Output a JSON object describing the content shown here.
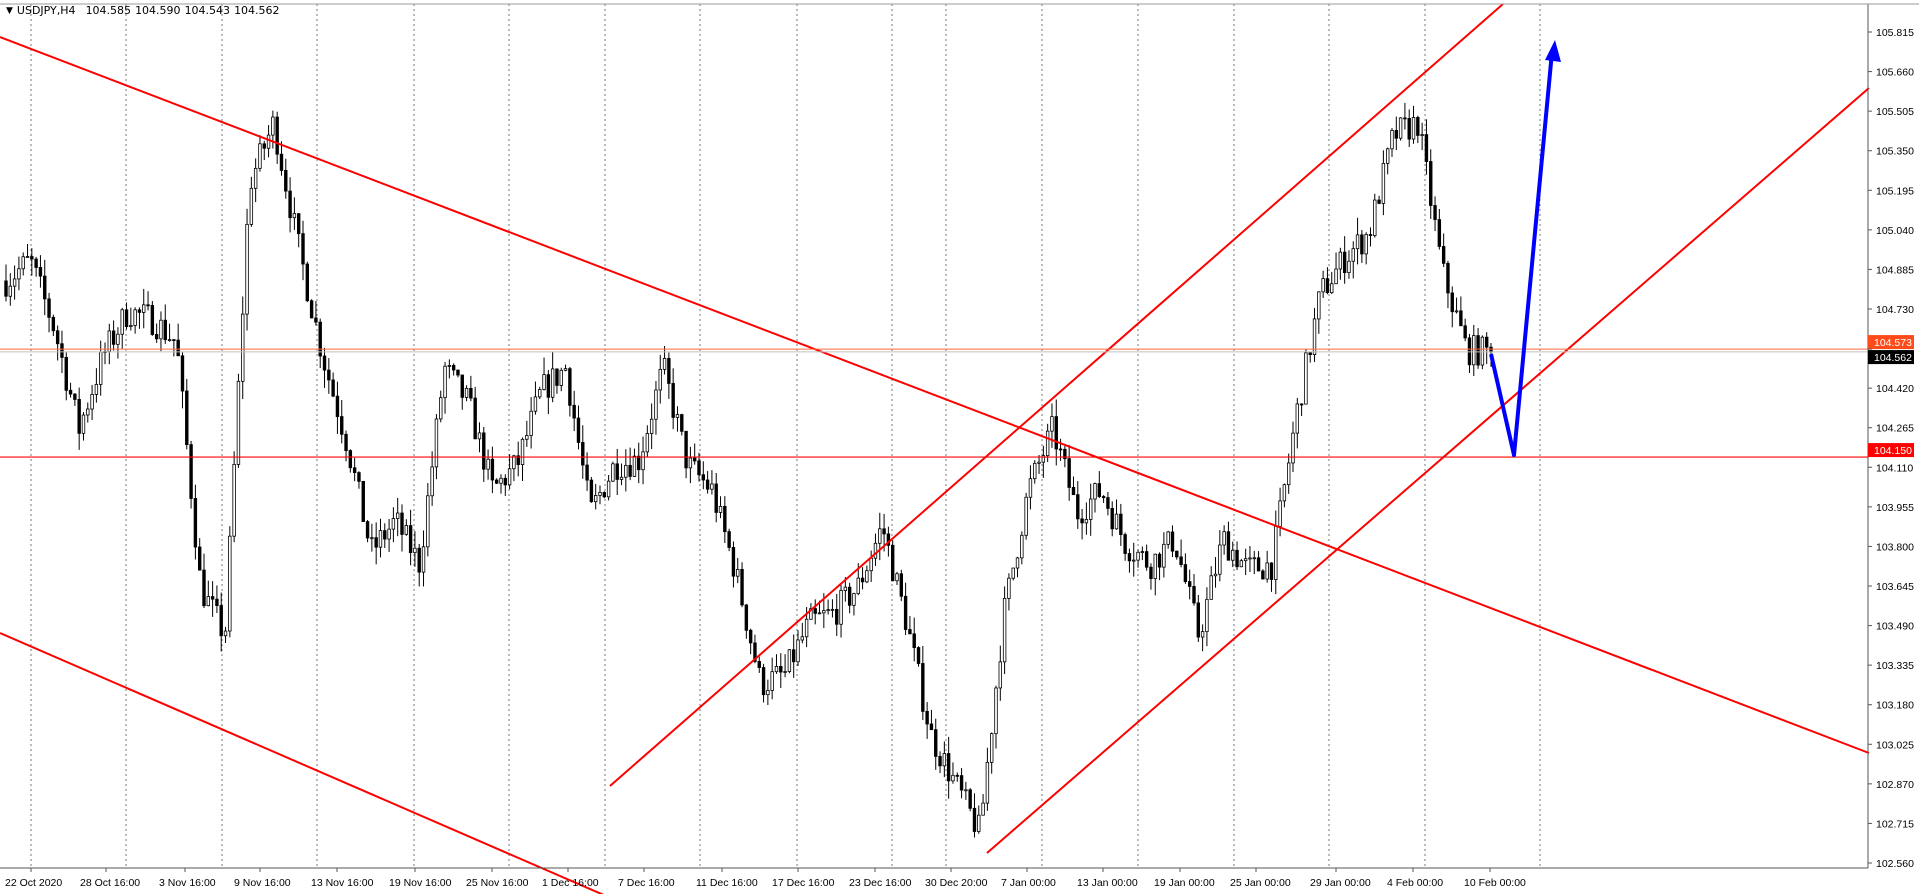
{
  "header": {
    "symbol": "USDJPY,H4",
    "open": "104.585",
    "high": "104.590",
    "low": "104.543",
    "close": "104.562",
    "menu_icon": "triangle-down-icon"
  },
  "chart_data": {
    "type": "candlestick",
    "title": "",
    "ylim": [
      102.56,
      105.815
    ],
    "grid": "vertical dotted",
    "y_ticks": [
      "105.815",
      "105.660",
      "105.505",
      "105.350",
      "105.195",
      "105.040",
      "104.885",
      "104.730",
      "104.573",
      "104.420",
      "104.265",
      "104.110",
      "103.955",
      "103.800",
      "103.645",
      "103.490",
      "103.335",
      "103.180",
      "103.025",
      "102.870",
      "102.715",
      "102.560"
    ],
    "x_ticks": [
      "22 Oct 2020",
      "28 Oct 16:00",
      "3 Nov 16:00",
      "9 Nov 16:00",
      "13 Nov 16:00",
      "19 Nov 16:00",
      "25 Nov 16:00",
      "1 Dec 16:00",
      "7 Dec 16:00",
      "11 Dec 16:00",
      "17 Dec 16:00",
      "23 Dec 16:00",
      "30 Dec 20:00",
      "7 Jan 00:00",
      "13 Jan 00:00",
      "19 Jan 00:00",
      "25 Jan 00:00",
      "29 Jan 00:00",
      "4 Feb 00:00",
      "10 Feb 00:00"
    ],
    "approx_close_path": [
      104.84,
      104.92,
      104.65,
      104.26,
      104.55,
      104.72,
      104.69,
      104.6,
      103.64,
      103.45,
      105.22,
      105.46,
      104.98,
      104.55,
      104.21,
      103.78,
      103.9,
      103.73,
      104.5,
      104.36,
      104.02,
      104.12,
      104.41,
      104.5,
      103.93,
      104.12,
      104.14,
      104.5,
      104.12,
      104.02,
      103.69,
      103.26,
      103.3,
      103.5,
      103.54,
      103.64,
      103.88,
      103.5,
      103.06,
      102.87,
      102.68,
      103.54,
      104.02,
      104.26,
      103.93,
      104.02,
      103.81,
      103.73,
      103.83,
      103.45,
      103.83,
      103.71,
      103.73,
      104.31,
      104.79,
      104.93,
      105.03,
      105.41,
      105.46,
      104.88,
      104.57,
      104.562
    ],
    "horizontal_lines": [
      {
        "price": "104.150",
        "color": "#ff0000"
      },
      {
        "price": "104.573",
        "color": "#ff6a3d"
      }
    ],
    "last_price": "104.562",
    "colors": {
      "trendline": "#ff0000",
      "arrow": "#0000ff",
      "candle": "#000000",
      "bid_label": "#000000",
      "level_label": "#ff0000"
    }
  }
}
